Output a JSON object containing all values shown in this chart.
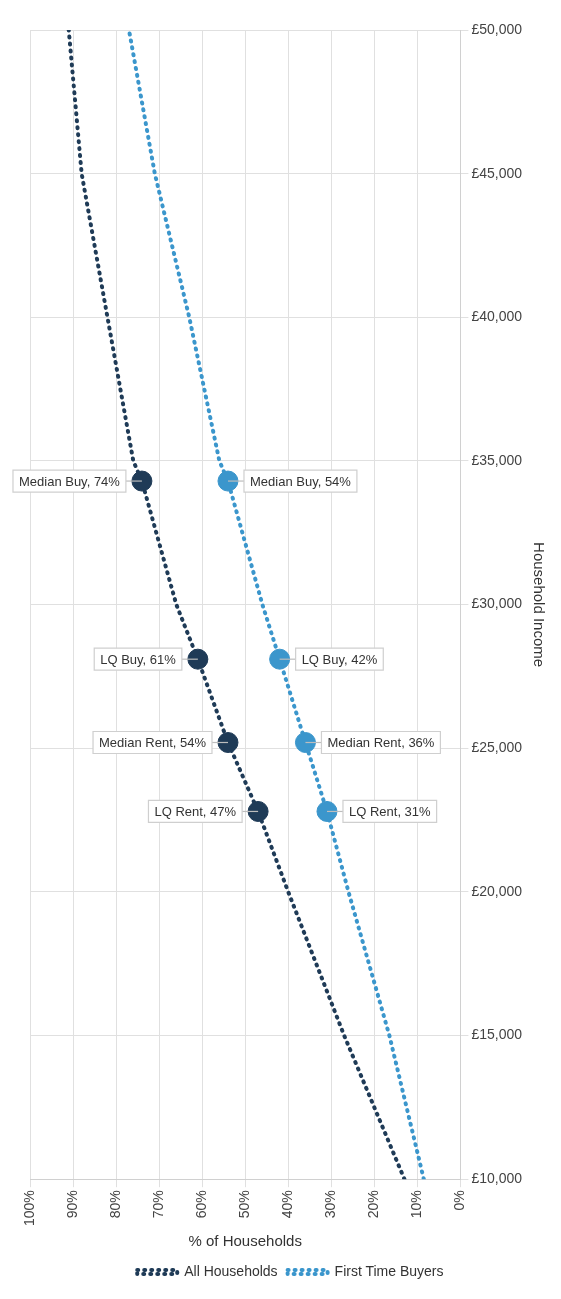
{
  "chart_data": {
    "type": "line",
    "xlabel": "% of Households",
    "ylabel": "Household Income",
    "xlim": [
      100,
      0
    ],
    "xticks": [
      {
        "value": 100,
        "label": "100%"
      },
      {
        "value": 90,
        "label": "90%"
      },
      {
        "value": 80,
        "label": "80%"
      },
      {
        "value": 70,
        "label": "70%"
      },
      {
        "value": 60,
        "label": "60%"
      },
      {
        "value": 50,
        "label": "50%"
      },
      {
        "value": 40,
        "label": "40%"
      },
      {
        "value": 30,
        "label": "30%"
      },
      {
        "value": 20,
        "label": "20%"
      },
      {
        "value": 10,
        "label": "10%"
      },
      {
        "value": 0,
        "label": "0%"
      }
    ],
    "ylim": [
      10000,
      50000
    ],
    "yticks": [
      {
        "value": 10000,
        "label": "£10,000"
      },
      {
        "value": 15000,
        "label": "£15,000"
      },
      {
        "value": 20000,
        "label": "£20,000"
      },
      {
        "value": 25000,
        "label": "£25,000"
      },
      {
        "value": 30000,
        "label": "£30,000"
      },
      {
        "value": 35000,
        "label": "£35,000"
      },
      {
        "value": 40000,
        "label": "£40,000"
      },
      {
        "value": 45000,
        "label": "£45,000"
      },
      {
        "value": 50000,
        "label": "£50,000"
      }
    ],
    "grid": true,
    "legend": "bottom",
    "series": [
      {
        "name": "All Households",
        "line_style": "dotted",
        "marker": "none",
        "color": "#1f3b57",
        "x": [
          13,
          27,
          40,
          47,
          54,
          61,
          66,
          74,
          76,
          82,
          88,
          91
        ],
        "values": [
          10000,
          15000,
          20000,
          22800,
          25200,
          28100,
          30000,
          34300,
          35000,
          40000,
          45000,
          50000
        ]
      },
      {
        "name": "First Time Buyers",
        "line_style": "dotted",
        "marker": "none",
        "color": "#3b96cc",
        "x": [
          8.5,
          16.5,
          26,
          31,
          36,
          42,
          46,
          54,
          56,
          63,
          71,
          77
        ],
        "values": [
          10000,
          15000,
          20000,
          22800,
          25200,
          28100,
          30000,
          34300,
          35000,
          40000,
          45000,
          50000
        ]
      },
      {
        "type": "scatter",
        "marker": "circle",
        "color": "#1f3b57",
        "x": [
          47,
          54,
          61,
          74
        ],
        "values": [
          22800,
          25200,
          28100,
          34300
        ]
      },
      {
        "type": "scatter",
        "marker": "circle",
        "color": "#3b96cc",
        "x": [
          31,
          36,
          42,
          54
        ],
        "values": [
          22800,
          25200,
          28100,
          34300
        ]
      }
    ],
    "annotations": [
      {
        "text": "LQ Rent, 47%",
        "x": 47,
        "y": 22800
      },
      {
        "text": "Median Rent, 54%",
        "x": 54,
        "y": 25200
      },
      {
        "text": "LQ Buy, 61%",
        "x": 61,
        "y": 28100
      },
      {
        "text": "Median Buy, 74%",
        "x": 74,
        "y": 34300
      },
      {
        "text": "LQ Rent, 31%",
        "x": 31,
        "y": 22800
      },
      {
        "text": "Median Rent, 36%",
        "x": 36,
        "y": 25200
      },
      {
        "text": "LQ Buy, 42%",
        "x": 42,
        "y": 28100
      },
      {
        "text": "Median Buy, 54%",
        "x": 54,
        "y": 34300
      }
    ]
  }
}
